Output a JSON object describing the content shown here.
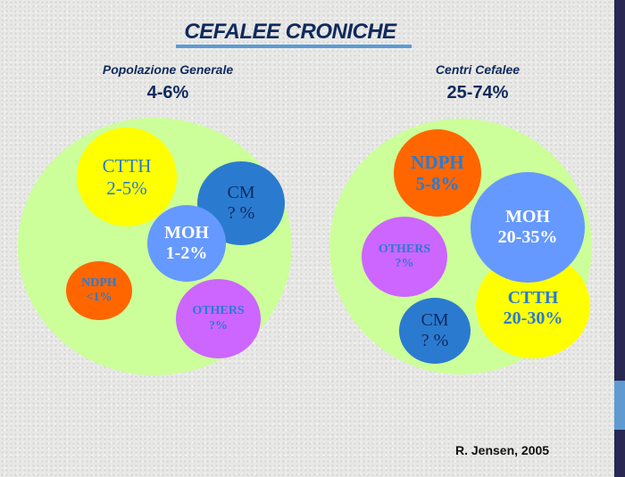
{
  "title": "CEFALEE CRONICHE",
  "left": {
    "heading": "Popolazione Generale",
    "range": "4-6%",
    "circles": {
      "ctth": {
        "name": "CTTH",
        "value": "2-5%"
      },
      "cm": {
        "name": "CM",
        "value": "? %"
      },
      "moh": {
        "name": "MOH",
        "value": "1-2%"
      },
      "ndph": {
        "name": "NDPH",
        "value": "<1%"
      },
      "others": {
        "name": "OTHERS",
        "value": "?%"
      }
    }
  },
  "right": {
    "heading": "Centri Cefalee",
    "range": "25-74%",
    "circles": {
      "ndph": {
        "name": "NDPH",
        "value": "5-8%"
      },
      "moh": {
        "name": "MOH",
        "value": "20-35%"
      },
      "others": {
        "name": "OTHERS",
        "value": "?%"
      },
      "ctth": {
        "name": "CTTH",
        "value": "20-30%"
      },
      "cm": {
        "name": "CM",
        "value": "? %"
      }
    }
  },
  "credit": "R. Jensen, 2005",
  "colors": {
    "green": "#ccff99",
    "yellow": "#ffff00",
    "cm": "#2a7bd0",
    "moh": "#6699ff",
    "ndph": "#ff6600",
    "others": "#cc66ff"
  }
}
